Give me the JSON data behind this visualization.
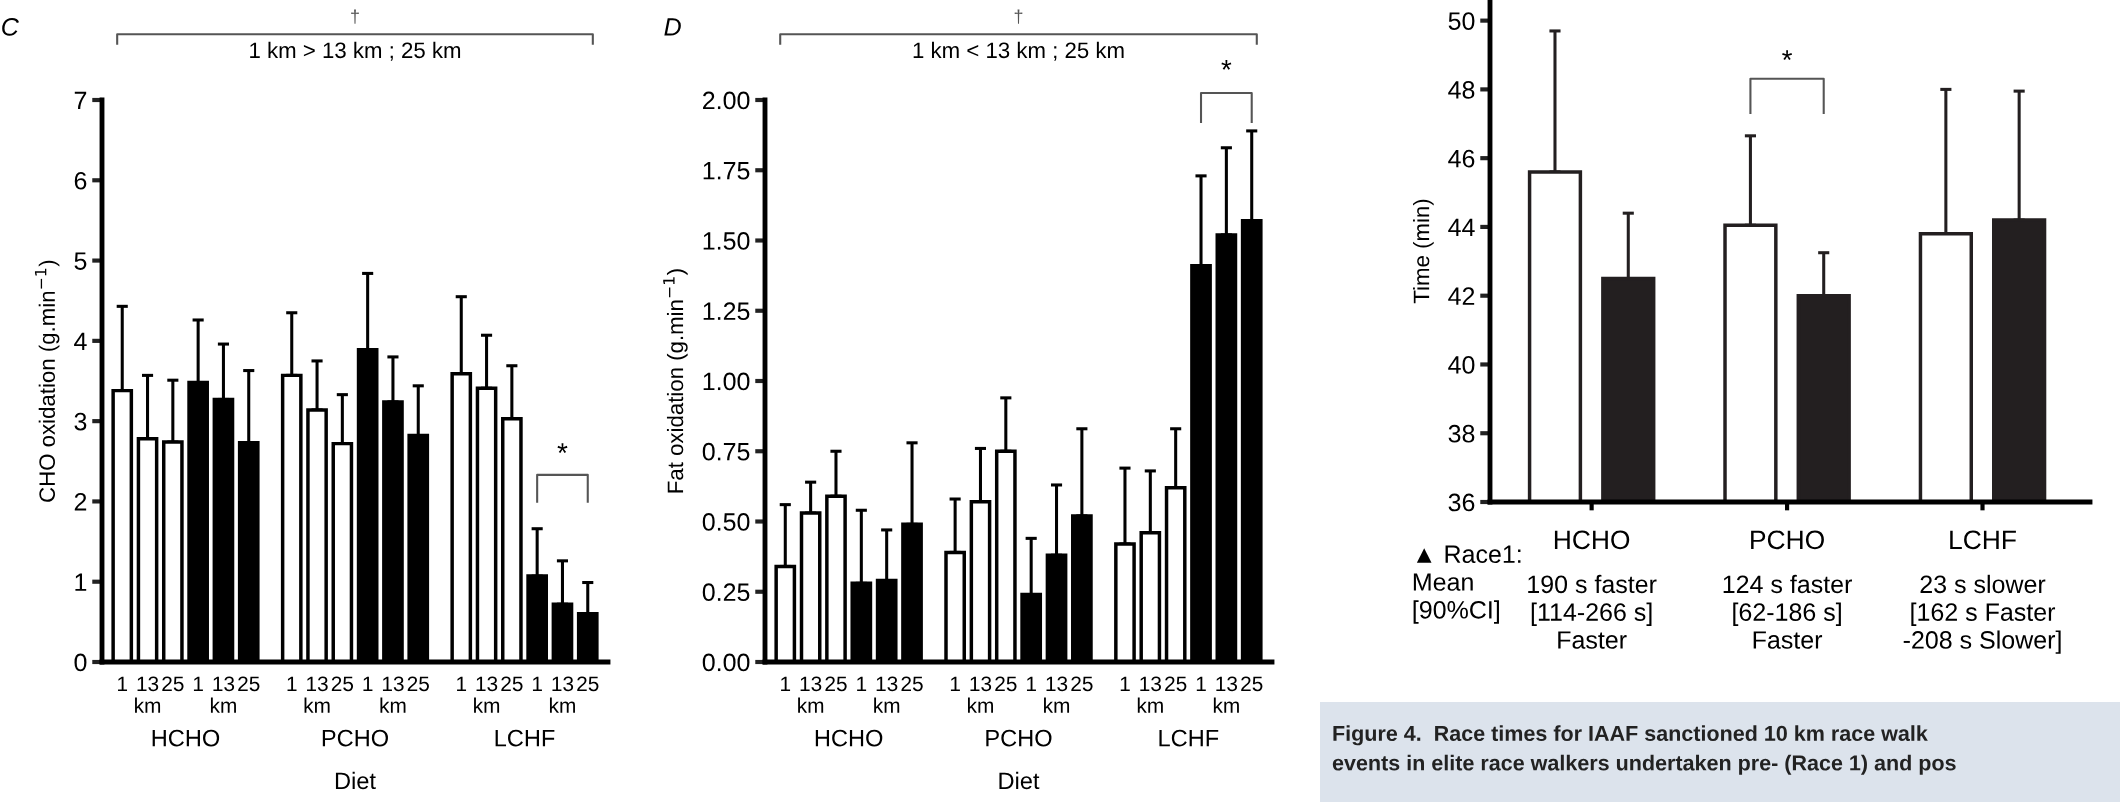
{
  "chart_data": [
    {
      "type": "bar",
      "title": "C",
      "ylabel": "CHO oxidation (g.min$^{−1}$)",
      "xlabel": "Diet",
      "categories": [
        "1",
        "13\nkm",
        "25",
        "1",
        "13\nkm",
        "25",
        "1",
        "13\nkm",
        "25",
        "1",
        "13\nkm",
        "25",
        "1",
        "13\nkm",
        "25",
        "1",
        "13\nkm",
        "25"
      ],
      "values": [
        3.38,
        2.78,
        2.74,
        3.48,
        3.27,
        2.73,
        3.57,
        3.14,
        2.72,
        3.89,
        3.24,
        2.82,
        3.59,
        3.41,
        3.03,
        1.07,
        0.72,
        0.6
      ],
      "errors": [
        [
          3.38,
          4.43
        ],
        [
          2.78,
          3.57
        ],
        [
          2.74,
          3.51
        ],
        [
          3.48,
          4.26
        ],
        [
          3.27,
          3.96
        ],
        [
          2.73,
          3.63
        ],
        [
          3.57,
          4.35
        ],
        [
          3.14,
          3.75
        ],
        [
          2.72,
          3.33
        ],
        [
          3.89,
          4.84
        ],
        [
          3.24,
          3.8
        ],
        [
          2.82,
          3.44
        ],
        [
          3.59,
          4.55
        ],
        [
          3.41,
          4.07
        ],
        [
          3.03,
          3.69
        ],
        [
          1.07,
          1.66
        ],
        [
          0.72,
          1.26
        ],
        [
          0.6,
          0.99
        ]
      ],
      "colors": [
        "#ffffff",
        "#ffffff",
        "#ffffff",
        "#000000",
        "#000000",
        "#000000",
        "#ffffff",
        "#ffffff",
        "#ffffff",
        "#000000",
        "#000000",
        "#000000",
        "#ffffff",
        "#ffffff",
        "#ffffff",
        "#000000",
        "#000000",
        "#000000"
      ],
      "ylim": [
        0,
        7
      ],
      "yticks": [
        0,
        1,
        2,
        3,
        4,
        5,
        6,
        7
      ],
      "grid": false,
      "legend": false,
      "annotations": [
        "†",
        "1 km > 13 km ; 25 km",
        "*",
        "HCHO",
        "PCHO",
        "LCHF"
      ]
    },
    {
      "type": "bar",
      "title": "D",
      "ylabel": "Fat oxidation (g.min$^{−1}$)",
      "xlabel": "Diet",
      "categories": [
        "1",
        "13\nkm",
        "25",
        "1",
        "13\nkm",
        "25",
        "1",
        "13\nkm",
        "25",
        "1",
        "13\nkm",
        "25",
        "1",
        "13\nkm",
        "25",
        "1",
        "13\nkm",
        "25"
      ],
      "values": [
        0.34,
        0.53,
        0.59,
        0.28,
        0.29,
        0.49,
        0.39,
        0.57,
        0.75,
        0.24,
        0.38,
        0.52,
        0.42,
        0.46,
        0.62,
        1.41,
        1.52,
        1.57
      ],
      "errors": [
        [
          0.34,
          0.56
        ],
        [
          0.53,
          0.64
        ],
        [
          0.59,
          0.75
        ],
        [
          0.28,
          0.54
        ],
        [
          0.29,
          0.47
        ],
        [
          0.49,
          0.78
        ],
        [
          0.39,
          0.58
        ],
        [
          0.57,
          0.76
        ],
        [
          0.75,
          0.94
        ],
        [
          0.24,
          0.44
        ],
        [
          0.38,
          0.63
        ],
        [
          0.52,
          0.83
        ],
        [
          0.42,
          0.69
        ],
        [
          0.46,
          0.68
        ],
        [
          0.62,
          0.83
        ],
        [
          1.41,
          1.73
        ],
        [
          1.52,
          1.83
        ],
        [
          1.57,
          1.89
        ]
      ],
      "colors": [
        "#ffffff",
        "#ffffff",
        "#ffffff",
        "#000000",
        "#000000",
        "#000000",
        "#ffffff",
        "#ffffff",
        "#ffffff",
        "#000000",
        "#000000",
        "#000000",
        "#ffffff",
        "#ffffff",
        "#ffffff",
        "#000000",
        "#000000",
        "#000000"
      ],
      "ylim": [
        0,
        2.0
      ],
      "yticks": [
        {
          "value": 0,
          "label": "0.00"
        },
        {
          "value": 0.25,
          "label": "0.25"
        },
        {
          "value": 0.5,
          "label": "0.50"
        },
        {
          "value": 0.75,
          "label": "0.75"
        },
        {
          "value": 1.0,
          "label": "1.00"
        },
        {
          "value": 1.25,
          "label": "1.25"
        },
        {
          "value": 1.5,
          "label": "1.50"
        },
        {
          "value": 1.75,
          "label": "1.75"
        },
        {
          "value": 2.0,
          "label": "2.00"
        }
      ],
      "grid": false,
      "legend": false,
      "annotations": [
        "†",
        "1 km < 13 km ; 25 km",
        "*",
        "HCHO",
        "PCHO",
        "LCHF"
      ]
    },
    {
      "type": "bar",
      "ylabel": "Time (min)",
      "categories": [
        "HCHO",
        "PCHO",
        "LCHF"
      ],
      "series": [
        {
          "color": "#ffffff",
          "values": [
            45.6,
            44.05,
            43.8
          ],
          "errors": [
            [
              45.6,
              49.7
            ],
            [
              44.05,
              46.65
            ],
            [
              43.8,
              48.0
            ]
          ]
        },
        {
          "color": "#231f20",
          "values": [
            42.5,
            42.0,
            44.2
          ],
          "errors": [
            [
              42.5,
              44.4
            ],
            [
              42.0,
              43.25
            ],
            [
              44.2,
              47.95
            ]
          ]
        }
      ],
      "ylim": [
        36,
        50.6
      ],
      "yticks": [
        36,
        38,
        40,
        42,
        44,
        46,
        48,
        50
      ],
      "grid": false,
      "legend": false,
      "annotations": [
        "*",
        "▲ Race1:\nMean\n[90%CI]",
        "190 s faster\n[114-266 s]\nFaster",
        "124 s faster\n[62-186 s]\nFaster",
        "23 s slower\n[162 s Faster\n-208 s Slower]",
        "Figure 4.  Race times for IAAF sanctioned 10 km race walk\nevents in elite race walkers undertaken pre- (Race 1) and pos"
      ]
    }
  ]
}
